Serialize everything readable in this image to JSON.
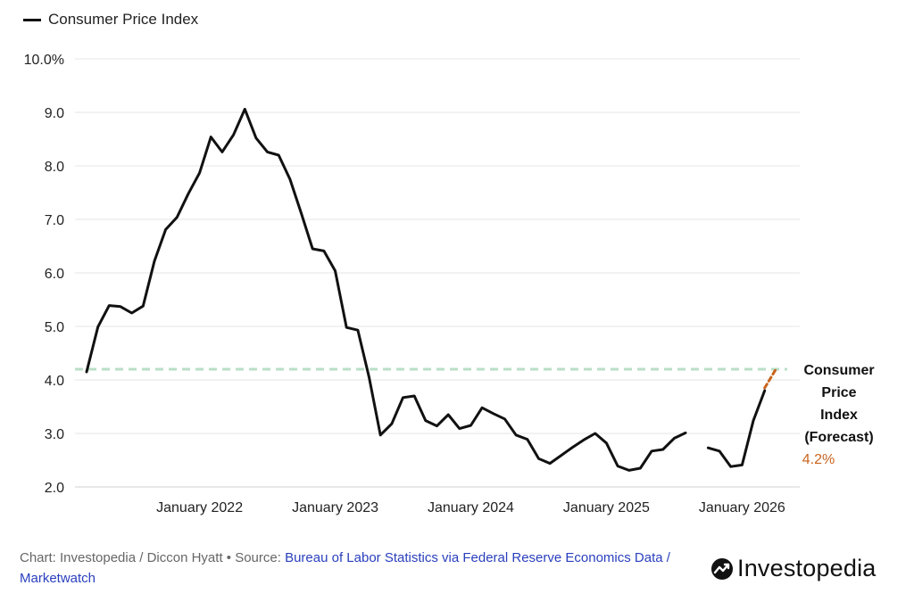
{
  "legend": {
    "label": "Consumer Price Index",
    "color": "#111111"
  },
  "footer": {
    "credit": "Chart: Investopedia / Diccon Hyatt",
    "separator": " • ",
    "source_prefix": "Source: ",
    "source_link": "Bureau of Labor Statistics via Federal Reserve Economics Data / Marketwatch"
  },
  "brand": {
    "name": "Investopedia"
  },
  "chart_data": {
    "type": "line",
    "title": "",
    "xlabel": "",
    "ylabel": "",
    "ylim": [
      2.0,
      10.0
    ],
    "yticks": [
      "10.0%",
      "9.0",
      "8.0",
      "7.0",
      "6.0",
      "5.0",
      "4.0",
      "3.0",
      "2.0"
    ],
    "ytick_values": [
      10,
      9,
      8,
      7,
      6,
      5,
      4,
      3,
      2
    ],
    "xlim": [
      "2021-03",
      "2026-05"
    ],
    "xticks": [
      {
        "label": "January 2022",
        "date": "2022-01"
      },
      {
        "label": "January 2023",
        "date": "2023-01"
      },
      {
        "label": "January 2024",
        "date": "2024-01"
      },
      {
        "label": "January 2025",
        "date": "2025-01"
      },
      {
        "label": "January 2026",
        "date": "2026-01"
      }
    ],
    "grid": true,
    "legend_position": "top-left",
    "series": [
      {
        "name": "Consumer Price Index",
        "color": "#111111",
        "points": [
          [
            "2021-03",
            4.15
          ],
          [
            "2021-04",
            4.99
          ],
          [
            "2021-05",
            5.39
          ],
          [
            "2021-06",
            5.37
          ],
          [
            "2021-07",
            5.25
          ],
          [
            "2021-08",
            5.38
          ],
          [
            "2021-09",
            6.22
          ],
          [
            "2021-10",
            6.81
          ],
          [
            "2021-11",
            7.04
          ],
          [
            "2021-12",
            7.48
          ],
          [
            "2022-01",
            7.87
          ],
          [
            "2022-02",
            8.54
          ],
          [
            "2022-03",
            8.26
          ],
          [
            "2022-04",
            8.58
          ],
          [
            "2022-05",
            9.06
          ],
          [
            "2022-06",
            8.52
          ],
          [
            "2022-07",
            8.26
          ],
          [
            "2022-08",
            8.2
          ],
          [
            "2022-09",
            7.75
          ],
          [
            "2022-10",
            7.11
          ],
          [
            "2022-11",
            6.45
          ],
          [
            "2022-12",
            6.41
          ],
          [
            "2023-01",
            6.04
          ],
          [
            "2023-02",
            4.98
          ],
          [
            "2023-03",
            4.93
          ],
          [
            "2023-04",
            4.05
          ],
          [
            "2023-05",
            2.97
          ],
          [
            "2023-06",
            3.18
          ],
          [
            "2023-07",
            3.67
          ],
          [
            "2023-08",
            3.7
          ],
          [
            "2023-09",
            3.24
          ],
          [
            "2023-10",
            3.14
          ],
          [
            "2023-11",
            3.35
          ],
          [
            "2023-12",
            3.09
          ],
          [
            "2024-01",
            3.15
          ],
          [
            "2024-02",
            3.48
          ],
          [
            "2024-03",
            3.37
          ],
          [
            "2024-04",
            3.27
          ],
          [
            "2024-05",
            2.97
          ],
          [
            "2024-06",
            2.89
          ],
          [
            "2024-07",
            2.53
          ],
          [
            "2024-08",
            2.44
          ],
          [
            "2024-09",
            2.59
          ],
          [
            "2024-10",
            2.74
          ],
          [
            "2024-11",
            2.88
          ],
          [
            "2024-12",
            3.0
          ],
          [
            "2025-01",
            2.82
          ],
          [
            "2025-02",
            2.39
          ],
          [
            "2025-03",
            2.31
          ],
          [
            "2025-04",
            2.35
          ],
          [
            "2025-05",
            2.67
          ],
          [
            "2025-06",
            2.7
          ],
          [
            "2025-07",
            2.91
          ],
          [
            "2025-08",
            3.01
          ],
          [
            "2025-09",
            null
          ],
          [
            "2025-10",
            2.73
          ],
          [
            "2025-11",
            2.67
          ],
          [
            "2025-12",
            2.38
          ],
          [
            "2026-01",
            2.41
          ],
          [
            "2026-02",
            3.24
          ],
          [
            "2026-03",
            3.8
          ]
        ]
      },
      {
        "name": "Consumer Price Index (Forecast)",
        "color": "#c8641e",
        "dashed": true,
        "points": [
          [
            "2026-03",
            3.85
          ],
          [
            "2026-04",
            4.2
          ]
        ]
      }
    ],
    "reference_line": {
      "y": 4.2,
      "color": "#b9dfc7",
      "style": "dashed"
    },
    "annotation": {
      "lines": [
        "Consumer",
        "Price",
        "Index",
        "(Forecast)"
      ],
      "value": "4.2%",
      "value_color": "#c8641e"
    }
  }
}
